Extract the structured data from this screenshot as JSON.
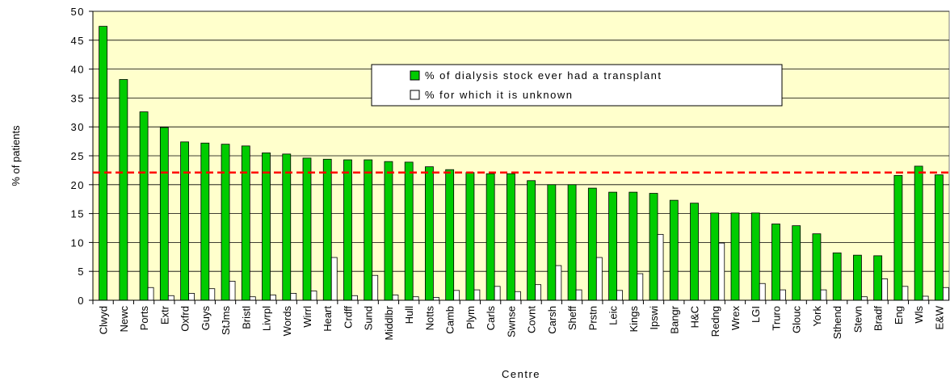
{
  "chart_data": {
    "type": "bar",
    "x_label": "Centre",
    "y_label": "% of patients",
    "categories": [
      "Clwyd",
      "Newc",
      "Ports",
      "Extr",
      "Oxfrd",
      "Guys",
      "StJms",
      "Bristl",
      "Livrpl",
      "Words",
      "Wirrl",
      "Heart",
      "Crdff",
      "Sund",
      "Middlbr",
      "Hull",
      "Notts",
      "Camb",
      "Plym",
      "Carls",
      "Swnse",
      "Covnt",
      "Carsh",
      "Sheff",
      "Prstn",
      "Leic",
      "Kings",
      "Ipswi",
      "Bangr",
      "H&C",
      "Redng",
      "Wrex",
      "LGI",
      "Truro",
      "Glouc",
      "York",
      "Sthend",
      "Stevn",
      "Bradf",
      "Eng",
      "Wls",
      "E&W"
    ],
    "series": [
      {
        "name": "% of dialysis stock ever had a transplant",
        "color": "#00cc00",
        "values": [
          47.4,
          38.2,
          32.6,
          29.9,
          27.4,
          27.2,
          27.0,
          26.7,
          25.5,
          25.3,
          24.6,
          24.4,
          24.3,
          24.3,
          24.0,
          23.9,
          23.1,
          22.6,
          22.1,
          21.9,
          21.9,
          20.7,
          20.0,
          20.0,
          19.4,
          18.7,
          18.7,
          18.5,
          17.3,
          16.8,
          15.1,
          15.1,
          15.1,
          13.2,
          12.9,
          11.5,
          8.2,
          7.8,
          7.7,
          21.6,
          23.2,
          21.7
        ]
      },
      {
        "name": "% for which it is unknown",
        "color": "#ffffff",
        "values": [
          0,
          0,
          2.2,
          0.8,
          1.2,
          2.0,
          3.3,
          0.6,
          0.9,
          1.2,
          1.6,
          7.4,
          0.8,
          4.3,
          0.9,
          0.6,
          0.5,
          1.7,
          1.8,
          2.4,
          1.5,
          2.7,
          6.0,
          1.8,
          7.4,
          1.7,
          4.6,
          11.4,
          0,
          0,
          9.9,
          0,
          2.9,
          1.8,
          0,
          1.8,
          0,
          0.6,
          3.7,
          2.4,
          0.7,
          2.2
        ]
      }
    ],
    "reference_line": {
      "value": 22.1,
      "color": "#ff0000"
    },
    "ylim": [
      0,
      50
    ],
    "yticks": [
      0,
      5,
      10,
      15,
      20,
      25,
      30,
      35,
      40,
      45,
      50
    ],
    "grid": true,
    "plot_background": "#ffffcc"
  }
}
